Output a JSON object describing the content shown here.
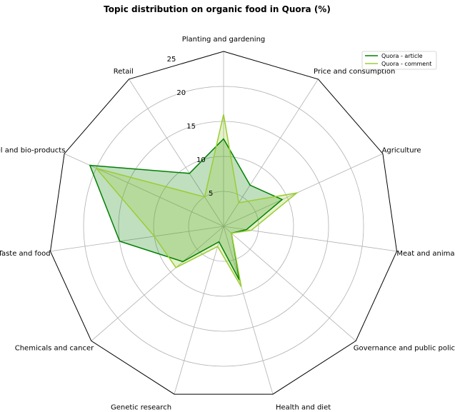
{
  "chart_data": {
    "type": "radar",
    "title": "Topic distribution on organic food in Quora (%)",
    "categories": [
      "Planting and gardening",
      "Price and consumption",
      "Agriculture",
      "Meat and animal feeding",
      "Governance and public policy",
      "Health and diet",
      "Genetic research",
      "Chemicals and cancer",
      "Taste and food",
      "GMO label and bio-products",
      "Retail"
    ],
    "rlim": [
      0,
      25
    ],
    "rticks": [
      5,
      10,
      15,
      20,
      25
    ],
    "grid": true,
    "legend_position": "top-right",
    "series": [
      {
        "name": "Quora - article",
        "color": "#008000",
        "fill_color": "#008000",
        "fill_opacity": 0.25,
        "values": [
          12.5,
          7.0,
          9.2,
          3.3,
          1.5,
          8.0,
          2.3,
          7.7,
          15.0,
          21.0,
          9.0
        ]
      },
      {
        "name": "Quora - comment",
        "color": "#9acd32",
        "fill_color": "#9acd32",
        "fill_opacity": 0.25,
        "values": [
          16.0,
          4.0,
          11.5,
          4.0,
          1.5,
          9.0,
          3.0,
          9.0,
          10.0,
          20.0,
          5.0
        ]
      }
    ]
  }
}
